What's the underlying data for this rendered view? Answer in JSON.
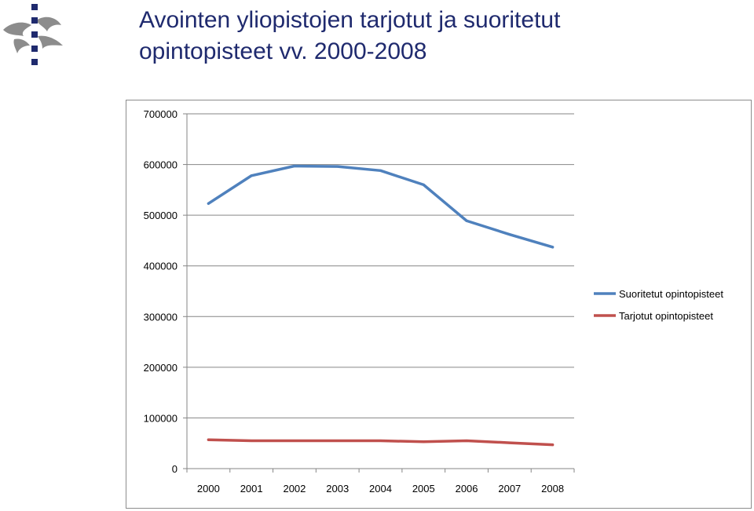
{
  "header": {
    "title_line1": "Avointen yliopistojen tarjotut ja suoritetut",
    "title_line2": "opintopisteet vv. 2000-2008",
    "logo_icon": "university-flame-logo-icon"
  },
  "colors": {
    "title": "#1f2a6e",
    "series_suoritetut": "#4f81bd",
    "series_tarjotut": "#c0504d",
    "grid": "#868686",
    "logo": "#8c8c8c",
    "logo_accent": "#1f2a6e"
  },
  "chart_data": {
    "type": "line",
    "title": "",
    "xlabel": "",
    "ylabel": "",
    "categories": [
      "2000",
      "2001",
      "2002",
      "2003",
      "2004",
      "2005",
      "2006",
      "2007",
      "2008"
    ],
    "ylim": [
      0,
      700000
    ],
    "yticks": [
      0,
      100000,
      200000,
      300000,
      400000,
      500000,
      600000,
      700000
    ],
    "grid": true,
    "legend_position": "right",
    "series": [
      {
        "name": "Suoritetut opintopisteet",
        "color": "#4f81bd",
        "values": [
          523000,
          578000,
          597000,
          596000,
          588000,
          560000,
          489000,
          462000,
          437000
        ]
      },
      {
        "name": "Tarjotut opintopisteet",
        "color": "#c0504d",
        "values": [
          57000,
          55000,
          55000,
          55000,
          55000,
          53000,
          55000,
          51000,
          47000
        ]
      }
    ]
  }
}
